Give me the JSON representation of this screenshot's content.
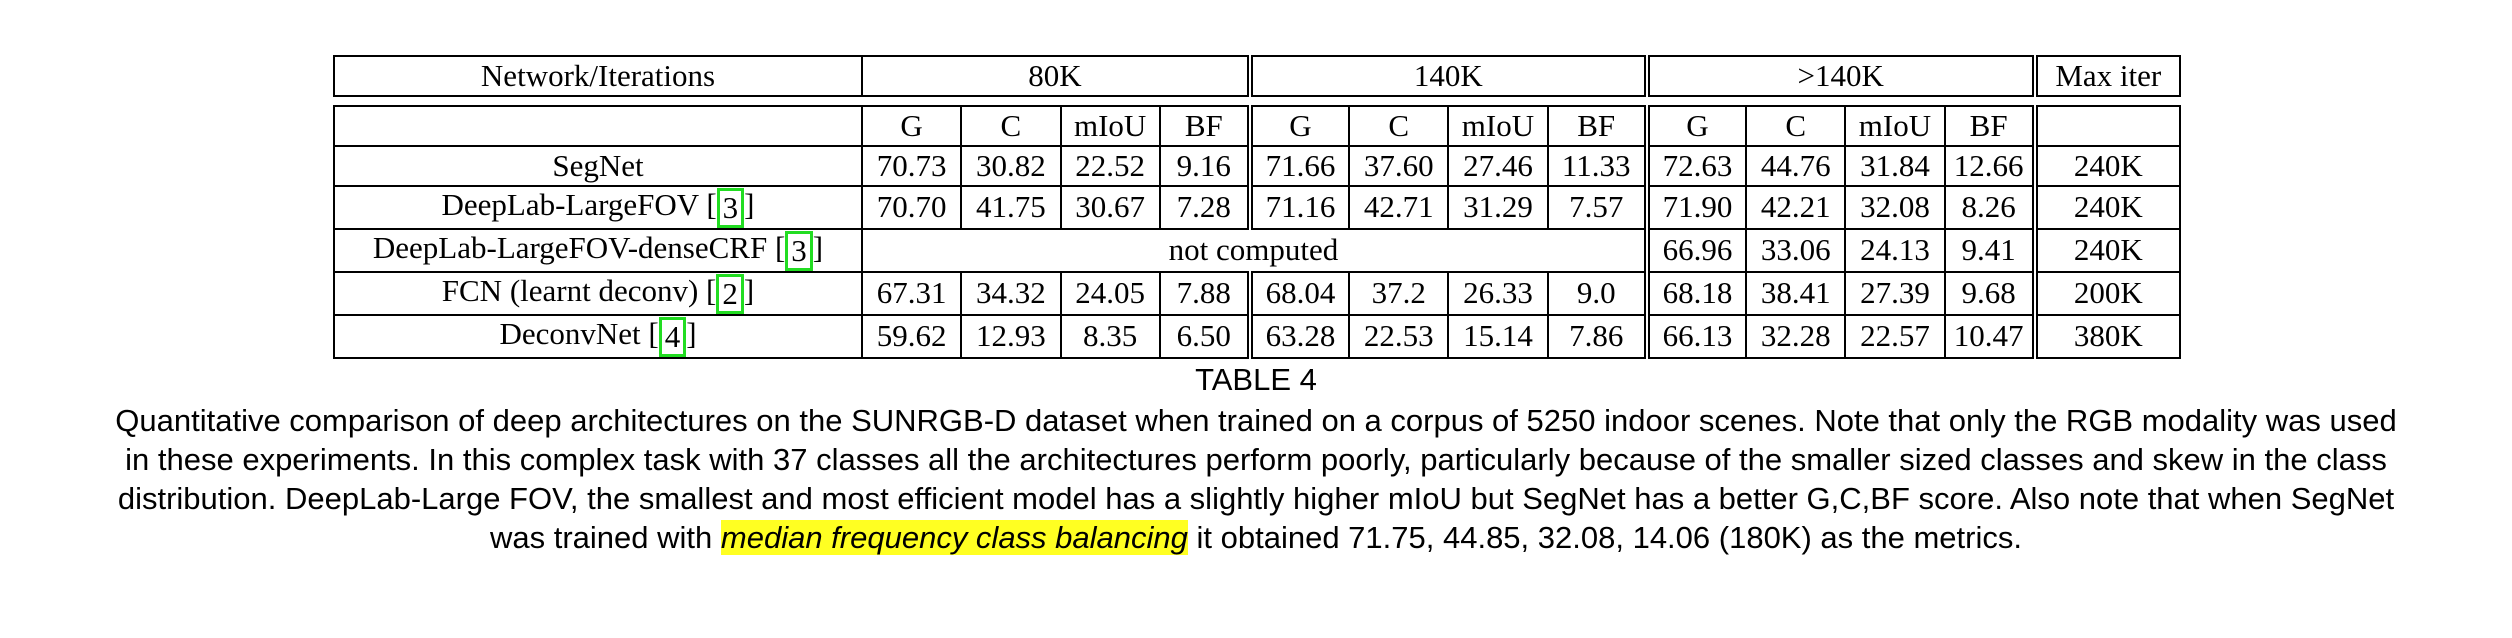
{
  "table": {
    "header": {
      "network_label": "Network/Iterations",
      "groups": [
        "80K",
        "140K",
        ">140K"
      ],
      "max_iter_label": "Max iter"
    },
    "subheaders": [
      "G",
      "C",
      "mIoU",
      "BF"
    ],
    "rows": [
      {
        "name": "SegNet",
        "cite": "",
        "vals80": [
          "70.73",
          "30.82",
          "22.52",
          "9.16"
        ],
        "vals140": [
          "71.66",
          "37.60",
          "27.46",
          "11.33"
        ],
        "valsGT": [
          "72.63",
          "44.76",
          "31.84",
          "12.66"
        ],
        "max": "240K"
      },
      {
        "name": "DeepLab-LargeFOV [",
        "cite": "3",
        "close": "]",
        "vals80": [
          "70.70",
          "41.75",
          "30.67",
          "7.28"
        ],
        "vals140": [
          "71.16",
          "42.71",
          "31.29",
          "7.57"
        ],
        "valsGT": [
          "71.90",
          "42.21",
          "32.08",
          "8.26"
        ],
        "max": "240K"
      },
      {
        "name": "DeepLab-LargeFOV-denseCRF [",
        "cite": "3",
        "close": "]",
        "not_computed": "not computed",
        "valsGT": [
          "66.96",
          "33.06",
          "24.13",
          "9.41"
        ],
        "max": "240K"
      },
      {
        "name": "FCN (learnt deconv) [",
        "cite": "2",
        "close": "]",
        "vals80": [
          "67.31",
          "34.32",
          "24.05",
          "7.88"
        ],
        "vals140": [
          "68.04",
          "37.2",
          "26.33",
          "9.0"
        ],
        "valsGT": [
          "68.18",
          "38.41",
          "27.39",
          "9.68"
        ],
        "max": "200K"
      },
      {
        "name": "DeconvNet [",
        "cite": "4",
        "close": "]",
        "vals80": [
          "59.62",
          "12.93",
          "8.35",
          "6.50"
        ],
        "vals140": [
          "63.28",
          "22.53",
          "15.14",
          "7.86"
        ],
        "valsGT": [
          "66.13",
          "32.28",
          "22.57",
          "10.47"
        ],
        "max": "380K"
      }
    ]
  },
  "caption": {
    "label": "TABLE 4",
    "text_before": "Quantitative comparison of deep architectures on the SUNRGB-D dataset when trained on a corpus of 5250 indoor scenes. Note that only the RGB modality was used in these experiments. In this complex task with 37 classes all the architectures perform poorly, particularly because of the smaller sized classes and skew in the class distribution. DeepLab-Large FOV, the smallest and most efficient model has a slightly higher mIoU but SegNet has a better G,C,BF score. Also note that when SegNet was trained with ",
    "highlight": "median frequency class balancing",
    "text_after": " it obtained 71.75, 44.85, 32.08, 14.06 (180K) as the metrics."
  },
  "colors": {
    "citation_box": "#22dd22",
    "highlight": "#ffff22"
  }
}
